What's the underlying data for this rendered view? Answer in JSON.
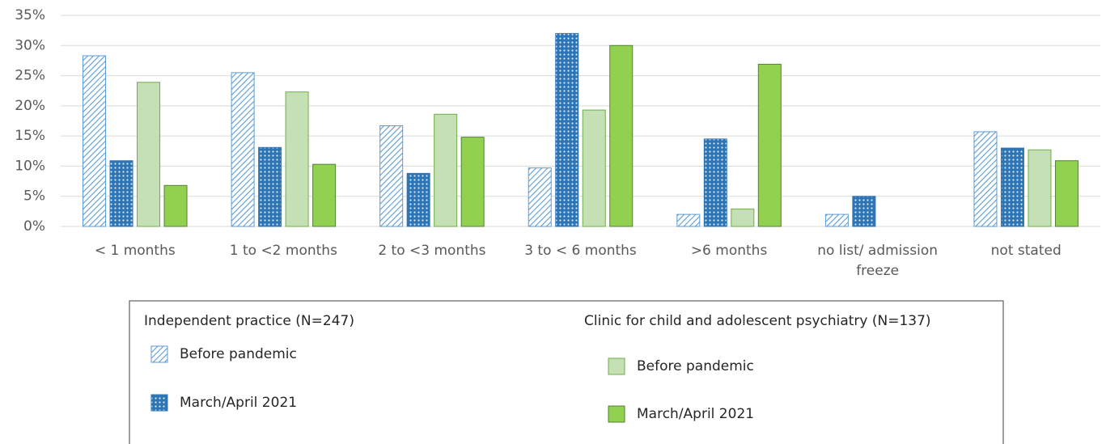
{
  "chart_data": {
    "type": "bar",
    "categories": [
      "< 1 months",
      "1 to <2 months",
      "2 to <3 months",
      "3 to < 6 months",
      ">6 months",
      "no list/ admission freeze",
      "not stated"
    ],
    "ylim": [
      0,
      35
    ],
    "yticks": [
      {
        "value": 0,
        "label": "0%"
      },
      {
        "value": 5,
        "label": "5%"
      },
      {
        "value": 10,
        "label": "10%"
      },
      {
        "value": 15,
        "label": "15%"
      },
      {
        "value": 20,
        "label": "20%"
      },
      {
        "value": 25,
        "label": "25%"
      },
      {
        "value": 30,
        "label": "30%"
      },
      {
        "value": 35,
        "label": "35%"
      }
    ],
    "grid": true,
    "series_groups": [
      {
        "name": "Independent practice (N=247)",
        "series": [
          {
            "name": "Before pandemic",
            "color": "#5b9bd5",
            "pattern": "hatch",
            "values": [
              28.3,
              25.5,
              16.7,
              9.7,
              2.0,
              2.0,
              15.7
            ]
          },
          {
            "name": "March/April 2021",
            "color": "#2e75b6",
            "pattern": "dots",
            "values": [
              10.9,
              13.1,
              8.8,
              32.0,
              14.5,
              5.0,
              13.0
            ]
          }
        ]
      },
      {
        "name": "Clinic for child and adolescent psychiatry (N=137)",
        "series": [
          {
            "name": "Before pandemic",
            "color": "#c5e0b4",
            "pattern": "solid",
            "values": [
              23.9,
              22.3,
              18.6,
              19.3,
              2.9,
              0,
              12.7
            ]
          },
          {
            "name": "March/April 2021",
            "color": "#92d050",
            "pattern": "solid",
            "values": [
              6.8,
              10.3,
              14.8,
              30.0,
              26.9,
              0,
              10.9
            ]
          }
        ]
      }
    ]
  }
}
